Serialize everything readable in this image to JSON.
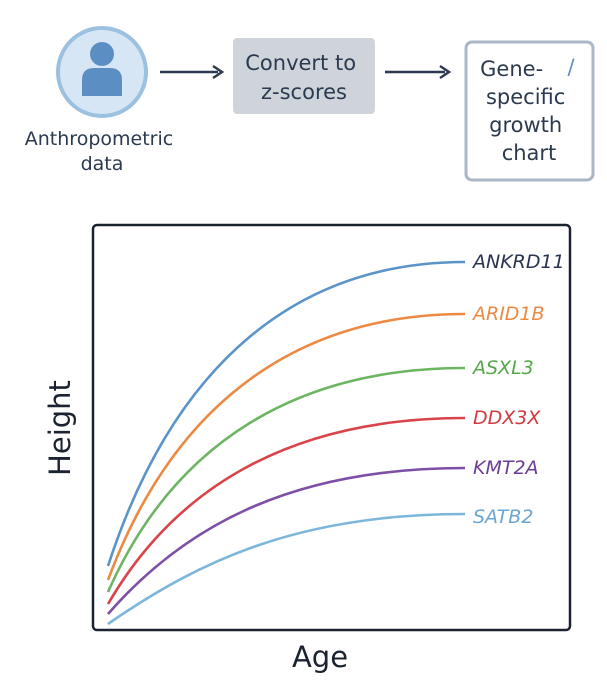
{
  "flow": {
    "input_label": [
      "Anthropometric",
      "data"
    ],
    "convert_label": [
      "Convert to",
      "z-scores"
    ],
    "output_label": [
      "Gene-",
      "specific",
      "growth",
      "chart"
    ],
    "output_mark": "/"
  },
  "chart": {
    "xlabel": "Age",
    "ylabel": "Height",
    "curves": [
      {
        "name": "ANKRD11",
        "color": "#5a94c8",
        "label_color": "#2a3450"
      },
      {
        "name": "ARID1B",
        "color": "#ec8a43",
        "label_color": "#ec8a43"
      },
      {
        "name": "ASXL3",
        "color": "#6db563",
        "label_color": "#55a84a"
      },
      {
        "name": "DDX3X",
        "color": "#d9434a",
        "label_color": "#d33a42"
      },
      {
        "name": "KMT2A",
        "color": "#7e4fa6",
        "label_color": "#6a3f94"
      },
      {
        "name": "SATB2",
        "color": "#7cb6da",
        "label_color": "#6ba6d2"
      }
    ]
  },
  "colors": {
    "person_circle_fill": "#d7e6f4",
    "person_circle_stroke": "#9cc0e0",
    "person_figure": "#5b8fc4",
    "convert_box_fill": "#cfd4db",
    "output_box_stroke": "#a9b7c7",
    "arrow": "#2b3a4e"
  }
}
